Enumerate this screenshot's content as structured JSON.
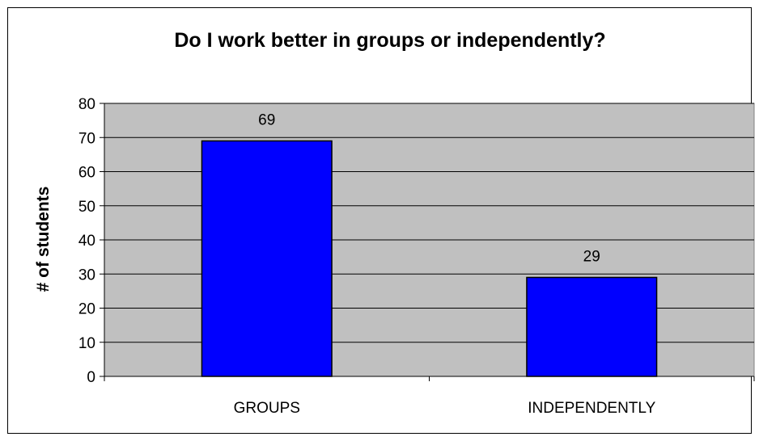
{
  "chart_data": {
    "type": "bar",
    "title": "Do I work better in groups or independently?",
    "ylabel": "# of students",
    "xlabel": "",
    "categories": [
      "GROUPS",
      "INDEPENDENTLY"
    ],
    "values": [
      69,
      29
    ],
    "data_labels": [
      "69",
      "29"
    ],
    "ylim": [
      0,
      80
    ],
    "yticks": [
      "0",
      "10",
      "20",
      "30",
      "40",
      "50",
      "60",
      "70",
      "80"
    ],
    "ytick_values": [
      0,
      10,
      20,
      30,
      40,
      50,
      60,
      70,
      80
    ],
    "grid": true,
    "legend": "none",
    "colors": {
      "bar_fill": "#0000FF",
      "bar_stroke": "#000000",
      "plot_background": "#C0C0C0",
      "gridline": "#000000"
    }
  }
}
